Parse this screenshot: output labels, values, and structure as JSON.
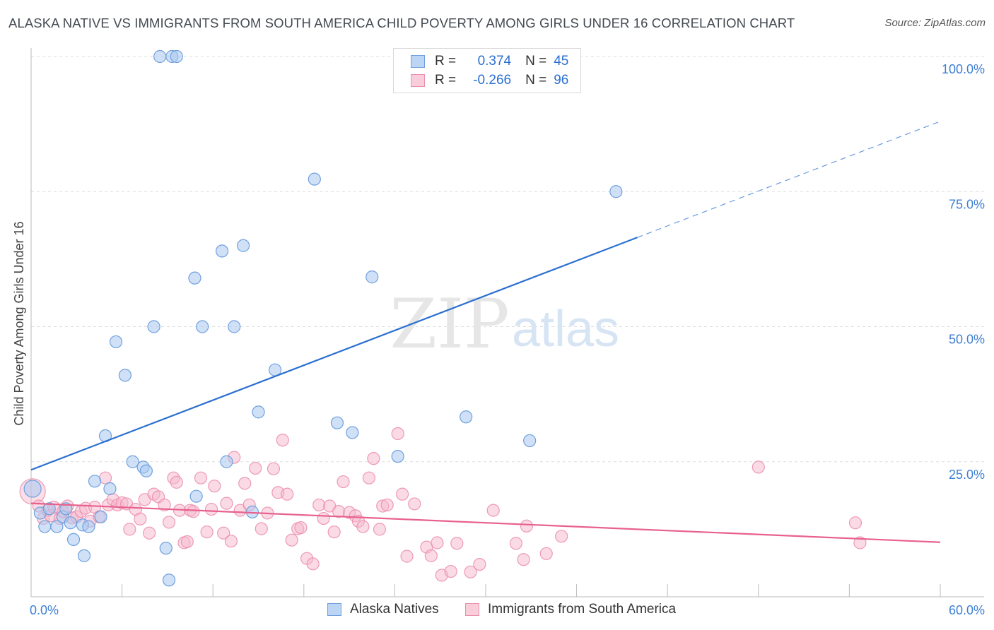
{
  "header": {
    "title": "ALASKA NATIVE VS IMMIGRANTS FROM SOUTH AMERICA CHILD POVERTY AMONG GIRLS UNDER 16 CORRELATION CHART",
    "source": "Source: ZipAtlas.com"
  },
  "watermark": {
    "zip": "ZIP",
    "atlas": "atlas"
  },
  "legend": {
    "rows": [
      {
        "r_label": "R =",
        "r_value": "0.374",
        "n_label": "N =",
        "n_value": "45"
      },
      {
        "r_label": "R =",
        "r_value": "-0.266",
        "n_label": "N =",
        "n_value": "96"
      }
    ]
  },
  "bottom_legend": {
    "series_a": "Alaska Natives",
    "series_b": "Immigrants from South America"
  },
  "colors": {
    "blue_fill": "#a9c8f0",
    "blue_stroke": "#6fa0de",
    "blue_line": "#2a6fd0",
    "pink_fill": "#f6b8cc",
    "pink_stroke": "#ec8fae",
    "pink_line": "#e8618c",
    "axis_label": "#3f7fd4",
    "grid": "#dddddd"
  },
  "chart_data": {
    "type": "scatter",
    "title": "ALASKA NATIVE VS IMMIGRANTS FROM SOUTH AMERICA CHILD POVERTY AMONG GIRLS UNDER 16 CORRELATION CHART",
    "xlabel": "",
    "ylabel": "Child Poverty Among Girls Under 16",
    "xlim": [
      0,
      60
    ],
    "ylim": [
      0,
      105
    ],
    "x_tick_labels": [
      {
        "value": 0,
        "label": "0.0%"
      },
      {
        "value": 60,
        "label": "60.0%"
      }
    ],
    "y_tick_labels": [
      {
        "value": 25,
        "label": "25.0%"
      },
      {
        "value": 50,
        "label": "50.0%"
      },
      {
        "value": 75,
        "label": "75.0%"
      },
      {
        "value": 100,
        "label": "100.0%"
      }
    ],
    "y_grid": [
      25,
      50,
      75,
      100
    ],
    "legend_position": "top-center",
    "series": [
      {
        "name": "Alaska Natives",
        "color": "#a9c8f0",
        "points": [
          [
            0.1,
            20.0
          ],
          [
            0.6,
            15.5
          ],
          [
            0.9,
            13.0
          ],
          [
            1.2,
            16.3
          ],
          [
            1.7,
            13.0
          ],
          [
            2.1,
            14.8
          ],
          [
            2.3,
            16.3
          ],
          [
            2.6,
            13.7
          ],
          [
            2.8,
            10.6
          ],
          [
            3.4,
            13.3
          ],
          [
            3.5,
            7.6
          ],
          [
            3.8,
            13.0
          ],
          [
            4.2,
            21.4
          ],
          [
            4.6,
            14.8
          ],
          [
            4.9,
            29.8
          ],
          [
            5.2,
            20.0
          ],
          [
            5.6,
            47.2
          ],
          [
            6.2,
            41.0
          ],
          [
            6.7,
            25.0
          ],
          [
            7.4,
            24.0
          ],
          [
            7.6,
            23.3
          ],
          [
            8.1,
            50.0
          ],
          [
            8.5,
            100.0
          ],
          [
            8.9,
            9.0
          ],
          [
            9.1,
            3.1
          ],
          [
            9.3,
            100.0
          ],
          [
            9.6,
            100.0
          ],
          [
            10.8,
            59.0
          ],
          [
            10.9,
            18.6
          ],
          [
            11.3,
            50.0
          ],
          [
            12.6,
            64.0
          ],
          [
            12.9,
            25.0
          ],
          [
            13.4,
            50.0
          ],
          [
            14.0,
            65.0
          ],
          [
            14.6,
            15.7
          ],
          [
            15.0,
            34.2
          ],
          [
            16.1,
            42.0
          ],
          [
            18.7,
            77.3
          ],
          [
            20.2,
            32.2
          ],
          [
            21.2,
            30.4
          ],
          [
            22.5,
            59.2
          ],
          [
            24.2,
            26.0
          ],
          [
            28.7,
            33.3
          ],
          [
            32.9,
            28.9
          ],
          [
            38.6,
            75.0
          ]
        ]
      },
      {
        "name": "Immigrants from South America",
        "color": "#f6b8cc",
        "points": [
          [
            0.1,
            19.5
          ],
          [
            0.5,
            16.8
          ],
          [
            0.8,
            14.5
          ],
          [
            1.1,
            16.0
          ],
          [
            1.3,
            15.0
          ],
          [
            1.5,
            16.6
          ],
          [
            1.9,
            14.5
          ],
          [
            2.1,
            15.8
          ],
          [
            2.4,
            16.8
          ],
          [
            2.7,
            14.6
          ],
          [
            3.0,
            14.8
          ],
          [
            3.3,
            15.8
          ],
          [
            3.6,
            16.4
          ],
          [
            3.9,
            14.0
          ],
          [
            4.2,
            16.6
          ],
          [
            4.5,
            14.8
          ],
          [
            4.9,
            22.0
          ],
          [
            5.1,
            17.0
          ],
          [
            5.4,
            18.0
          ],
          [
            5.7,
            17.0
          ],
          [
            6.0,
            17.4
          ],
          [
            6.3,
            17.2
          ],
          [
            6.5,
            12.5
          ],
          [
            6.9,
            16.2
          ],
          [
            7.2,
            14.4
          ],
          [
            7.5,
            18.0
          ],
          [
            7.8,
            11.8
          ],
          [
            8.1,
            19.0
          ],
          [
            8.4,
            18.5
          ],
          [
            8.8,
            17.0
          ],
          [
            9.1,
            13.8
          ],
          [
            9.4,
            22.0
          ],
          [
            9.6,
            21.2
          ],
          [
            9.8,
            16.0
          ],
          [
            10.1,
            10.0
          ],
          [
            10.3,
            10.2
          ],
          [
            10.5,
            16.0
          ],
          [
            10.7,
            15.8
          ],
          [
            11.2,
            22.0
          ],
          [
            11.6,
            12.0
          ],
          [
            11.9,
            16.2
          ],
          [
            12.1,
            20.5
          ],
          [
            12.7,
            11.8
          ],
          [
            12.9,
            17.3
          ],
          [
            13.2,
            10.3
          ],
          [
            13.4,
            25.8
          ],
          [
            13.8,
            16.0
          ],
          [
            14.1,
            21.0
          ],
          [
            14.4,
            17.0
          ],
          [
            14.8,
            23.8
          ],
          [
            15.2,
            12.6
          ],
          [
            15.6,
            15.5
          ],
          [
            16.0,
            23.7
          ],
          [
            16.3,
            19.3
          ],
          [
            16.6,
            29.0
          ],
          [
            16.9,
            19.0
          ],
          [
            17.2,
            10.5
          ],
          [
            17.6,
            12.6
          ],
          [
            17.8,
            12.8
          ],
          [
            18.2,
            7.1
          ],
          [
            18.6,
            6.1
          ],
          [
            19.0,
            17.0
          ],
          [
            19.3,
            14.5
          ],
          [
            19.7,
            16.8
          ],
          [
            20.0,
            12.0
          ],
          [
            20.3,
            15.8
          ],
          [
            20.6,
            21.3
          ],
          [
            21.0,
            15.6
          ],
          [
            21.4,
            15.0
          ],
          [
            21.6,
            14.0
          ],
          [
            21.9,
            13.0
          ],
          [
            22.3,
            22.0
          ],
          [
            22.6,
            25.6
          ],
          [
            23.0,
            12.5
          ],
          [
            23.2,
            16.8
          ],
          [
            23.5,
            17.0
          ],
          [
            24.2,
            30.2
          ],
          [
            24.5,
            19.0
          ],
          [
            24.8,
            7.5
          ],
          [
            25.3,
            17.2
          ],
          [
            26.1,
            9.2
          ],
          [
            26.4,
            7.6
          ],
          [
            26.8,
            10.0
          ],
          [
            27.1,
            4.0
          ],
          [
            27.7,
            4.7
          ],
          [
            28.1,
            9.9
          ],
          [
            29.0,
            4.6
          ],
          [
            29.6,
            6.0
          ],
          [
            30.5,
            16.0
          ],
          [
            32.0,
            9.9
          ],
          [
            32.5,
            6.9
          ],
          [
            32.7,
            13.1
          ],
          [
            34.0,
            8.0
          ],
          [
            35.0,
            11.2
          ],
          [
            48.0,
            24.0
          ],
          [
            54.4,
            13.7
          ],
          [
            54.7,
            10.0
          ]
        ]
      }
    ],
    "trend_lines": [
      {
        "series": "Alaska Natives",
        "x0": 0,
        "y0": 23.5,
        "x1": 40,
        "y1": 66.5,
        "dashed_to_x": 60,
        "dashed_to_y": 88.0
      },
      {
        "series": "Immigrants from South America",
        "x0": 0,
        "y0": 17.3,
        "x1": 60,
        "y1": 10.1
      }
    ]
  }
}
